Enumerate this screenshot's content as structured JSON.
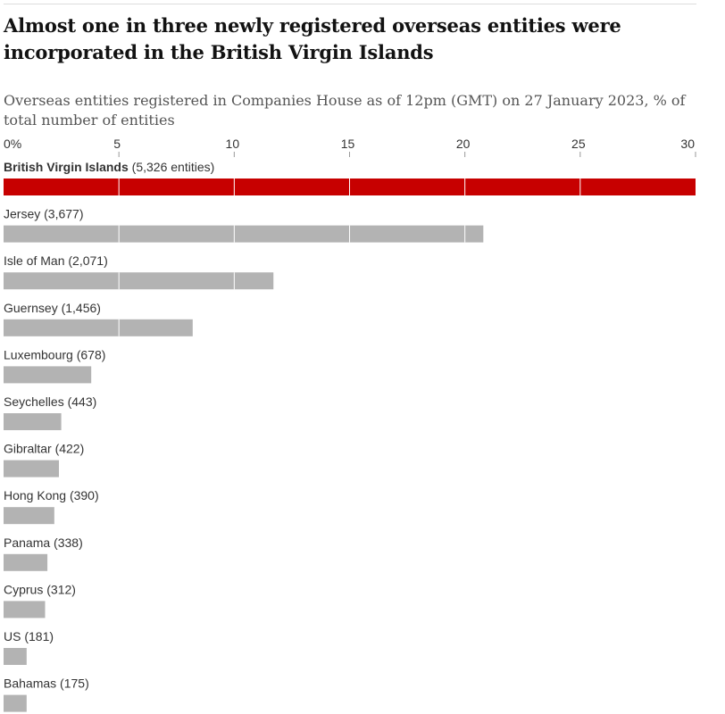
{
  "header": {
    "title": "Almost one in three newly registered overseas entities were incorporated in the British Virgin Islands",
    "subtitle": "Overseas entities registered in Companies House as of 12pm (GMT) on 27 January 2023, % of total number of entities"
  },
  "colors": {
    "highlight": "#c70000",
    "bar": "#b3b3b3",
    "text": "#333333",
    "gridline": "#ffffff"
  },
  "chart_data": {
    "type": "bar",
    "orientation": "horizontal",
    "title": "Almost one in three newly registered overseas entities were incorporated in the British Virgin Islands",
    "subtitle": "Overseas entities registered in Companies House as of 12pm (GMT) on 27 January 2023, % of total number of entities",
    "xlim": [
      0,
      30
    ],
    "ticks": [
      {
        "value": 0,
        "label": "0%"
      },
      {
        "value": 5,
        "label": "5"
      },
      {
        "value": 10,
        "label": "10"
      },
      {
        "value": 15,
        "label": "15"
      },
      {
        "value": 20,
        "label": "20"
      },
      {
        "value": 25,
        "label": "25"
      },
      {
        "value": 30,
        "label": "30"
      }
    ],
    "grid": true,
    "categories": [
      {
        "name": "British Virgin Islands",
        "count_label": "(5,326 entities)",
        "value": 30.1,
        "highlight": true
      },
      {
        "name": "Jersey",
        "count_label": "(3,677)",
        "value": 20.8,
        "highlight": false
      },
      {
        "name": "Isle of Man",
        "count_label": "(2,071)",
        "value": 11.7,
        "highlight": false
      },
      {
        "name": "Guernsey",
        "count_label": "(1,456)",
        "value": 8.2,
        "highlight": false
      },
      {
        "name": "Luxembourg",
        "count_label": "(678)",
        "value": 3.8,
        "highlight": false
      },
      {
        "name": "Seychelles",
        "count_label": "(443)",
        "value": 2.5,
        "highlight": false
      },
      {
        "name": "Gibraltar",
        "count_label": "(422)",
        "value": 2.4,
        "highlight": false
      },
      {
        "name": "Hong Kong",
        "count_label": "(390)",
        "value": 2.2,
        "highlight": false
      },
      {
        "name": "Panama",
        "count_label": "(338)",
        "value": 1.9,
        "highlight": false
      },
      {
        "name": "Cyprus",
        "count_label": "(312)",
        "value": 1.8,
        "highlight": false
      },
      {
        "name": "US",
        "count_label": "(181)",
        "value": 1.0,
        "highlight": false
      },
      {
        "name": "Bahamas",
        "count_label": "(175)",
        "value": 1.0,
        "highlight": false
      }
    ]
  }
}
